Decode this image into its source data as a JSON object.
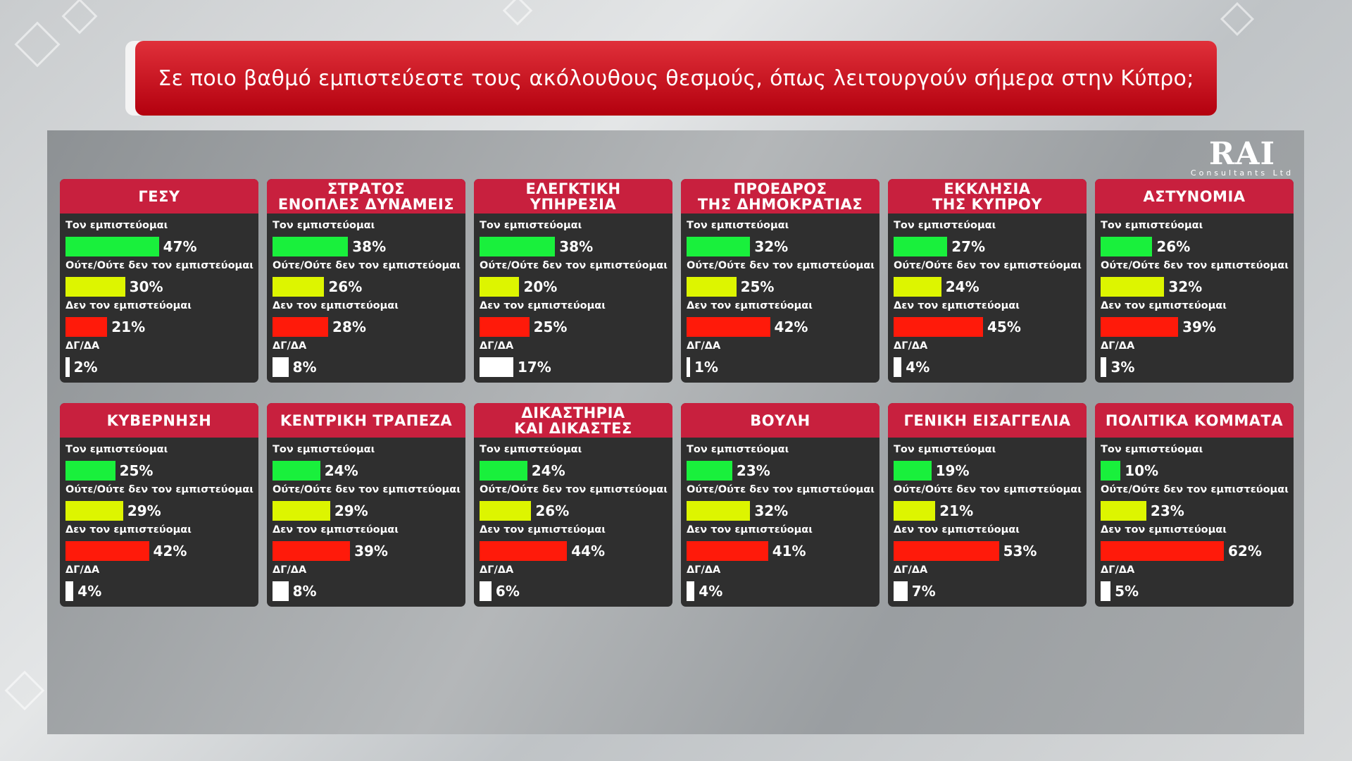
{
  "title": "Σε ποιο βαθμό εμπιστεύεστε τους ακόλουθους θεσμούς, όπως λειτουργούν σήμερα στην Κύπρο;",
  "logo": {
    "main": "RAI",
    "sub": "Consultants Ltd"
  },
  "colors": {
    "trust": "#19f03c",
    "neutral": "#ddf500",
    "distrust": "#ff1a0a",
    "dk": "#ffffff",
    "header": "#c8203e",
    "card": "#2f2f2f"
  },
  "chart_data": {
    "type": "bar",
    "title": "Σε ποιο βαθμό εμπιστεύεστε τους ακόλουθους θεσμούς, όπως λειτουργούν σήμερα στην Κύπρο;",
    "xlim": [
      0,
      100
    ],
    "categories": [
      "Τον εμπιστεύομαι",
      "Ούτε/Ούτε δεν τον εμπιστεύομαι",
      "Δεν τον εμπιστεύομαι",
      "ΔΓ/ΔΑ"
    ],
    "panels": [
      {
        "name": "ΓΕΣΥ",
        "values": [
          47,
          30,
          21,
          2
        ],
        "labels": [
          "47%",
          "30%",
          "21%",
          "2%"
        ]
      },
      {
        "name": "ΣΤΡΑΤΟΣ\nΕΝΟΠΛΕΣ ΔΥΝΑΜΕΙΣ",
        "values": [
          38,
          26,
          28,
          8
        ],
        "labels": [
          "38%",
          "26%",
          "28%",
          "8%"
        ]
      },
      {
        "name": "ΕΛΕΓΚΤΙΚΗ\nΥΠΗΡΕΣΙΑ",
        "values": [
          38,
          20,
          25,
          17
        ],
        "labels": [
          "38%",
          "20%",
          "25%",
          "17%"
        ]
      },
      {
        "name": "ΠΡΟΕΔΡΟΣ\nΤΗΣ ΔΗΜΟΚΡΑΤΙΑΣ",
        "values": [
          32,
          25,
          42,
          1
        ],
        "labels": [
          "32%",
          "25%",
          "42%",
          "1%"
        ]
      },
      {
        "name": "ΕΚΚΛΗΣΙΑ\nΤΗΣ ΚΥΠΡΟΥ",
        "values": [
          27,
          24,
          45,
          4
        ],
        "labels": [
          "27%",
          "24%",
          "45%",
          "4%"
        ]
      },
      {
        "name": "ΑΣΤΥΝΟΜΙΑ",
        "values": [
          26,
          32,
          39,
          3
        ],
        "labels": [
          "26%",
          "32%",
          "39%",
          "3%"
        ]
      },
      {
        "name": "ΚΥΒΕΡΝΗΣΗ",
        "values": [
          25,
          29,
          42,
          4
        ],
        "labels": [
          "25%",
          "29%",
          "42%",
          "4%"
        ]
      },
      {
        "name": "ΚΕΝΤΡΙΚΗ ΤΡΑΠΕΖΑ",
        "values": [
          24,
          29,
          39,
          8
        ],
        "labels": [
          "24%",
          "29%",
          "39%",
          "8%"
        ]
      },
      {
        "name": "ΔΙΚΑΣΤΗΡΙΑ\nΚΑΙ ΔΙΚΑΣΤΕΣ",
        "values": [
          24,
          26,
          44,
          6
        ],
        "labels": [
          "24%",
          "26%",
          "44%",
          "6%"
        ]
      },
      {
        "name": "ΒΟΥΛΗ",
        "values": [
          23,
          32,
          41,
          4
        ],
        "labels": [
          "23%",
          "32%",
          "41%",
          "4%"
        ]
      },
      {
        "name": "ΓΕΝΙΚΗ ΕΙΣΑΓΓΕΛΙΑ",
        "values": [
          19,
          21,
          53,
          7
        ],
        "labels": [
          "19%",
          "21%",
          "53%",
          "7%"
        ]
      },
      {
        "name": "ΠΟΛΙΤΙΚΑ ΚΟΜΜΑΤΑ",
        "values": [
          10,
          23,
          62,
          5
        ],
        "labels": [
          "10%",
          "23%",
          "62%",
          "5%"
        ]
      }
    ]
  }
}
